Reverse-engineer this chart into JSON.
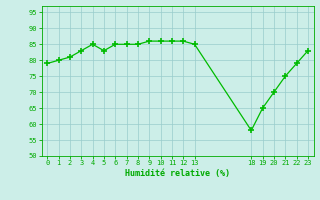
{
  "x": [
    0,
    1,
    2,
    3,
    4,
    5,
    6,
    7,
    8,
    9,
    10,
    11,
    12,
    13,
    18,
    19,
    20,
    21,
    22,
    23
  ],
  "y": [
    79,
    80,
    81,
    83,
    85,
    83,
    85,
    85,
    85,
    86,
    86,
    86,
    86,
    85,
    58,
    65,
    70,
    75,
    79,
    83
  ],
  "xlim": [
    -0.5,
    23.5
  ],
  "ylim": [
    50,
    97
  ],
  "yticks": [
    50,
    55,
    60,
    65,
    70,
    75,
    80,
    85,
    90,
    95
  ],
  "xticks": [
    0,
    1,
    2,
    3,
    4,
    5,
    6,
    7,
    8,
    9,
    10,
    11,
    12,
    13,
    18,
    19,
    20,
    21,
    22,
    23
  ],
  "xlabel": "Humidité relative (%)",
  "line_color": "#00bb00",
  "marker_color": "#00bb00",
  "bg_color": "#cceee8",
  "grid_color": "#99cccc",
  "axis_label_color": "#00aa00",
  "tick_color": "#00aa00",
  "font_name": "monospace",
  "fig_width": 3.2,
  "fig_height": 2.0,
  "dpi": 100
}
